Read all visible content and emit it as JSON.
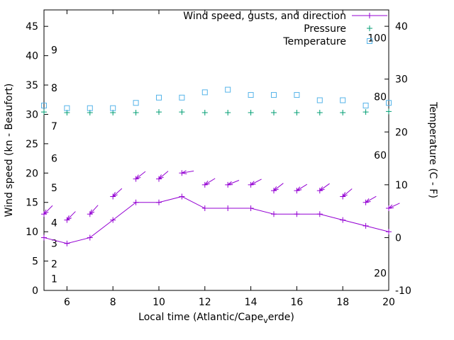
{
  "chart_data": {
    "type": "line",
    "title": "",
    "x_axis": {
      "label_full": "Local time (Atlantic/Cape_verde)",
      "label_parts": {
        "pre": "Local time (Atlantic/Cape",
        "sub": "v",
        "post": "erde)"
      },
      "range": [
        5,
        20
      ],
      "ticks": [
        6,
        8,
        10,
        12,
        14,
        16,
        18,
        20
      ]
    },
    "y_left_axis": {
      "label": "Wind speed (kn - Beaufort)",
      "range": [
        0,
        47.8
      ],
      "ticks": [
        0,
        5,
        10,
        15,
        20,
        25,
        30,
        35,
        40,
        45
      ],
      "beaufort_labels": [
        {
          "label": "1",
          "kn": 2
        },
        {
          "label": "2",
          "kn": 4.5
        },
        {
          "label": "3",
          "kn": 8
        },
        {
          "label": "4",
          "kn": 11.5
        },
        {
          "label": "5",
          "kn": 17.5
        },
        {
          "label": "6",
          "kn": 22.5
        },
        {
          "label": "7",
          "kn": 28
        },
        {
          "label": "8",
          "kn": 34.5
        },
        {
          "label": "9",
          "kn": 41
        }
      ]
    },
    "y_right_axis": {
      "label": "Temperature (C - F)",
      "range": [
        -10,
        43.1
      ],
      "ticks": [
        -10,
        0,
        10,
        20,
        30,
        40
      ],
      "fahrenheit_labels": [
        {
          "label": "100",
          "celsius": 37.8
        },
        {
          "label": "80",
          "celsius": 26.7
        },
        {
          "label": "60",
          "celsius": 15.6
        },
        {
          "label": "20",
          "celsius": -6.7
        }
      ]
    },
    "legend": [
      {
        "label": "Wind speed, gusts, and direction",
        "marker": "line-plus",
        "color": "#9400d3"
      },
      {
        "label": "Pressure",
        "marker": "plus",
        "color": "#009e73"
      },
      {
        "label": "Temperature",
        "marker": "square",
        "color": "#56b4e9"
      }
    ],
    "hours": [
      5,
      6,
      7,
      8,
      9,
      10,
      11,
      12,
      13,
      14,
      15,
      16,
      17,
      18,
      19,
      20
    ],
    "series": {
      "wind_speed": {
        "name": "Wind speed",
        "axis": "left",
        "color": "#9400d3",
        "values": [
          9,
          8,
          9,
          12,
          15,
          15,
          16,
          14,
          14,
          14,
          13,
          13,
          13,
          12,
          11,
          10
        ]
      },
      "wind_gusts": {
        "name": "Gusts",
        "axis": "left",
        "color": "#9400d3",
        "values": [
          13,
          12,
          13,
          16,
          19,
          19,
          20,
          18,
          18,
          18,
          17,
          17,
          17,
          16,
          15,
          14
        ],
        "arrow_tail_deg": [
          45,
          45,
          48,
          42,
          38,
          40,
          10,
          32,
          22,
          28,
          38,
          32,
          36,
          40,
          30,
          25
        ]
      },
      "pressure": {
        "name": "Pressure",
        "axis": "left",
        "color": "#009e73",
        "values": [
          30.4,
          30.3,
          30.3,
          30.3,
          30.3,
          30.4,
          30.4,
          30.3,
          30.3,
          30.3,
          30.3,
          30.3,
          30.3,
          30.3,
          30.4,
          30.5
        ]
      },
      "temperature": {
        "name": "Temperature",
        "axis": "right",
        "color": "#56b4e9",
        "values": [
          25,
          24.5,
          24.5,
          24.5,
          25.5,
          26.5,
          26.5,
          27.5,
          28,
          27,
          27,
          27,
          26,
          26,
          25,
          25.5
        ]
      }
    }
  }
}
